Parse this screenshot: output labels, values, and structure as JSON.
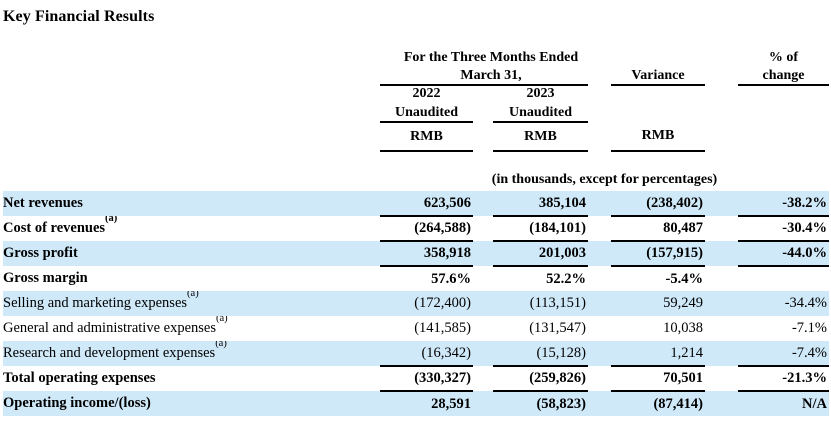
{
  "title": "Key Financial Results",
  "table": {
    "header": {
      "period_line1": "For the Three Months Ended",
      "period_line2": "March 31,",
      "variance_label": "Variance",
      "pct_line1": "% of",
      "pct_line2": "change",
      "col_2022_year": "2022",
      "col_2022_status": "Unaudited",
      "col_2023_year": "2023",
      "col_2023_status": "Unaudited",
      "currency_2022": "RMB",
      "currency_2023": "RMB",
      "currency_variance": "RMB",
      "units_note": "(in thousands, except for percentages)"
    },
    "rows": [
      {
        "label": "Net revenues",
        "sup": "",
        "v2022": "623,506",
        "v2023": "385,104",
        "variance": "(238,402)",
        "pct": "-38.2%",
        "emphasis": true,
        "highlighted": true,
        "ruled_below": true
      },
      {
        "label": "Cost of revenues",
        "sup": "(a)",
        "v2022": "(264,588)",
        "v2023": "(184,101)",
        "variance": "80,487",
        "pct": "-30.4%",
        "emphasis": true,
        "highlighted": false,
        "ruled_below": true
      },
      {
        "label": "Gross profit",
        "sup": "",
        "v2022": "358,918",
        "v2023": "201,003",
        "variance": "(157,915)",
        "pct": "-44.0%",
        "emphasis": true,
        "highlighted": true,
        "ruled_below": true
      },
      {
        "label": "Gross margin",
        "sup": "",
        "v2022": "57.6%",
        "v2023": "52.2%",
        "variance": "-5.4%",
        "pct": "",
        "emphasis": true,
        "highlighted": false,
        "ruled_below": false
      },
      {
        "label": "Selling and marketing expenses",
        "sup": "(a)",
        "v2022": "(172,400)",
        "v2023": "(113,151)",
        "variance": "59,249",
        "pct": "-34.4%",
        "emphasis": false,
        "highlighted": true,
        "ruled_below": false
      },
      {
        "label": "General and administrative expenses",
        "sup": "(a)",
        "v2022": "(141,585)",
        "v2023": "(131,547)",
        "variance": "10,038",
        "pct": "-7.1%",
        "emphasis": false,
        "highlighted": false,
        "ruled_below": false
      },
      {
        "label": "Research and development expenses",
        "sup": "(a)",
        "v2022": "(16,342)",
        "v2023": "(15,128)",
        "variance": "1,214",
        "pct": "-7.4%",
        "emphasis": false,
        "highlighted": true,
        "ruled_below": true
      },
      {
        "label": "Total operating expenses",
        "sup": "",
        "v2022": "(330,327)",
        "v2023": "(259,826)",
        "variance": "70,501",
        "pct": "-21.3%",
        "emphasis": true,
        "highlighted": false,
        "ruled_below": true
      },
      {
        "label": "Operating income/(loss)",
        "sup": "",
        "v2022": "28,591",
        "v2023": "(58,823)",
        "variance": "(87,414)",
        "pct": "N/A",
        "emphasis": true,
        "highlighted": true,
        "ruled_below": false
      }
    ]
  },
  "colors": {
    "row_highlight": "#cfe9f9",
    "text": "#000000",
    "rule": "#000000"
  }
}
